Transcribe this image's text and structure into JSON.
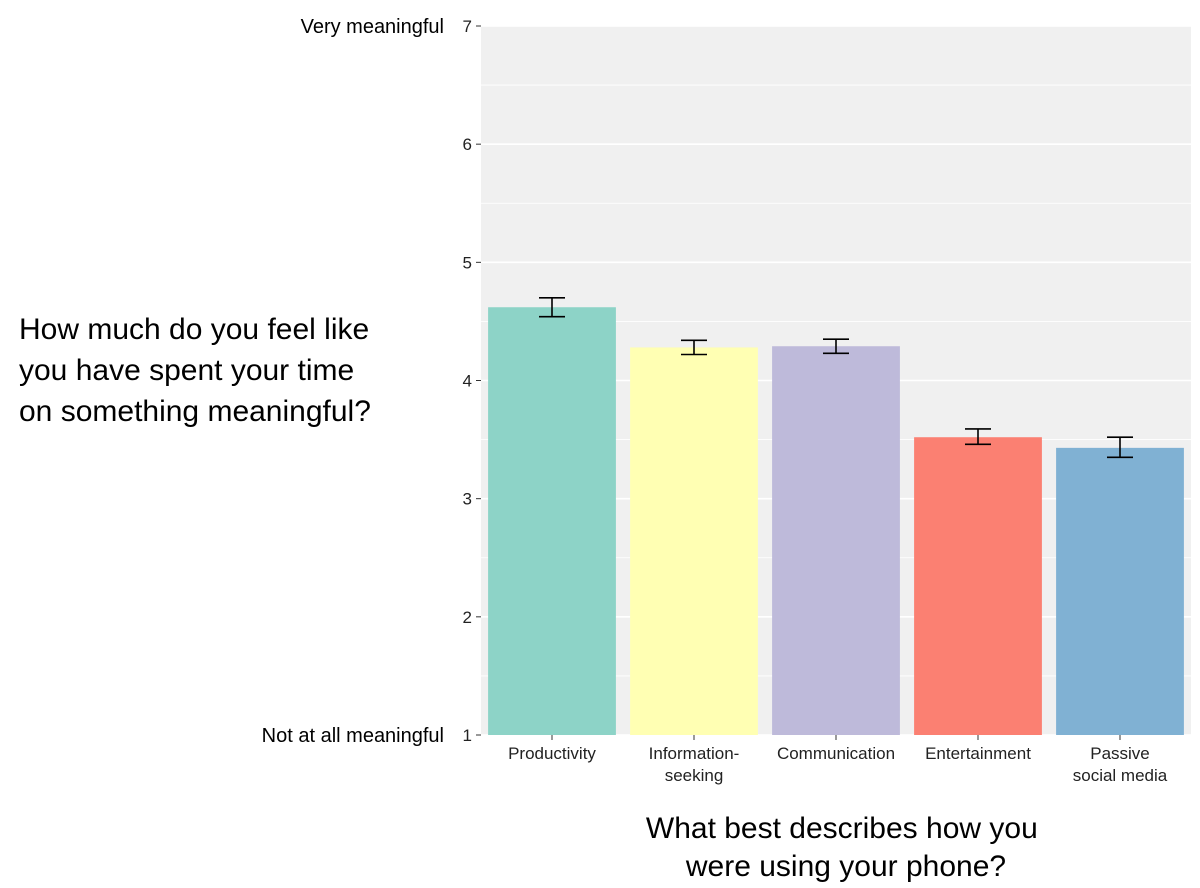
{
  "chart_data": {
    "type": "bar",
    "categories": [
      [
        "Productivity"
      ],
      [
        "Information-",
        "seeking"
      ],
      [
        "Communication"
      ],
      [
        "Entertainment"
      ],
      [
        "Passive",
        "social media"
      ]
    ],
    "values": [
      4.62,
      4.28,
      4.29,
      3.52,
      3.43
    ],
    "error_low": [
      4.54,
      4.22,
      4.23,
      3.46,
      3.35
    ],
    "error_high": [
      4.7,
      4.34,
      4.35,
      3.59,
      3.52
    ],
    "colors": [
      "#8dd3c7",
      "#ffffb3",
      "#bebada",
      "#fb8072",
      "#80b1d3"
    ],
    "ylim": [
      1,
      7
    ],
    "yticks": [
      1,
      2,
      3,
      4,
      5,
      6,
      7
    ],
    "y_anchor_labels": {
      "top": "Very meaningful",
      "bottom": "Not at all meaningful"
    },
    "ylabel_lines": [
      "How much do you feel like",
      "you have spent your time",
      "on something meaningful?"
    ],
    "xlabel_lines": [
      "What best describes how you",
      "were using your phone?"
    ],
    "grid": true,
    "panel_background": "#f0f0f0",
    "grid_color": "#ffffff"
  }
}
